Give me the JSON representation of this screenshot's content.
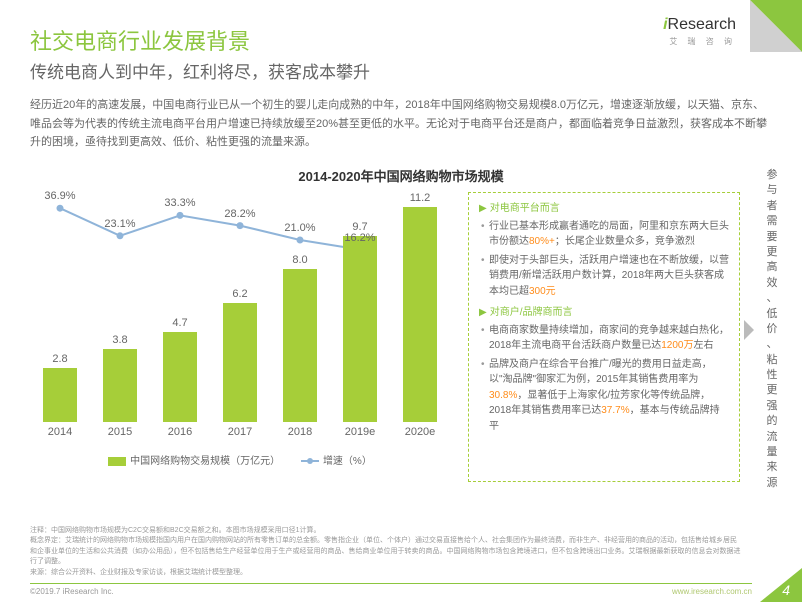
{
  "logo": {
    "main_i": "i",
    "main_rest": "Research",
    "sub": "艾 瑞 咨 询"
  },
  "title": "社交电商行业发展背景",
  "subtitle": "传统电商人到中年，红利将尽，获客成本攀升",
  "body": "经历近20年的高速发展，中国电商行业已从一个初生的婴儿走向成熟的中年，2018年中国网络购物交易规模8.0万亿元，增速逐渐放缓，以天猫、京东、唯品会等为代表的传统主流电商平台用户增速已持续放缓至20%甚至更低的水平。无论对于电商平台还是商户，都面临着竞争日益激烈，获客成本不断攀升的困境，亟待找到更高效、低价、粘性更强的流量来源。",
  "chart": {
    "title": "2014-2020年中国网络购物市场规模",
    "categories": [
      "2014",
      "2015",
      "2016",
      "2017",
      "2018",
      "2019e",
      "2020e"
    ],
    "bar_values": [
      2.8,
      3.8,
      4.7,
      6.2,
      8.0,
      9.7,
      11.2
    ],
    "bar_color": "#a6ce39",
    "line_values": [
      36.9,
      23.1,
      33.3,
      28.2,
      21.0,
      16.2
    ],
    "line_color": "#8fb4d9",
    "ymax": 12,
    "pct_ymax": 40,
    "legend_bar": "中国网络购物交易规模（万亿元）",
    "legend_line": "增速（%）"
  },
  "sidebox": {
    "h1": "对电商平台而言",
    "h1_items": [
      {
        "pre": "行业已基本形成赢者通吃的局面，阿里和京东两大巨头市份额达",
        "em": "80%+",
        "post": "；长尾企业数量众多，竞争激烈"
      },
      {
        "pre": "即使对于头部巨头，活跃用户增速也在不断放缓，以营销费用/新增活跃用户数计算，2018年两大巨头获客成本均已超",
        "em": "300元",
        "post": ""
      }
    ],
    "h2": "对商户/品牌商而言",
    "h2_items": [
      {
        "pre": "电商商家数量持续增加，商家间的竞争越来越白热化，2018年主流电商平台活跃商户数量已达",
        "em": "1200万",
        "post": "左右"
      },
      {
        "pre": "品牌及商户在综合平台推广/曝光的费用日益走高，以\"淘品牌\"御家汇为例，2015年其销售费用率为",
        "em": "30.8%",
        "post": "，显著低于上海家化/拉芳家化等传统品牌，2018年其销售费用率已达",
        "em2": "37.7%",
        "post2": "，基本与传统品牌持平"
      }
    ]
  },
  "vtext": "参与者需要更高效、低价、粘性更强的流量来源",
  "notes": [
    "注释：中国网络购物市场规模为C2C交易额和B2C交易额之和。本图市场规模采用口径1计算。",
    "概念界定：艾瑞统计的网络购物市场规模指国内用户在国内购物网站的所有零售订单的总金额。零售指企业（单位、个体户）通过交易直接售给个人、社会集团作为最终消费，而非生产、非经营用的商品的活动，包括售给城乡居民和企事业单位的生活和公共消费（如办公用品），但不包括售给生产经营单位用于生产或经营用的商品、售给商业单位用于转卖的商品。中国网络购物市场包含跨境进口，但不包含跨境出口业务。艾瑞根据最新获取的信息会对数据进行了调整。",
    "来源：综合公开资料、企业财报及专家访谈，根据艾瑞统计模型整理。"
  ],
  "copyright": "©2019.7 iResearch Inc.",
  "site": "www.iresearch.com.cn",
  "pagenum": "4"
}
